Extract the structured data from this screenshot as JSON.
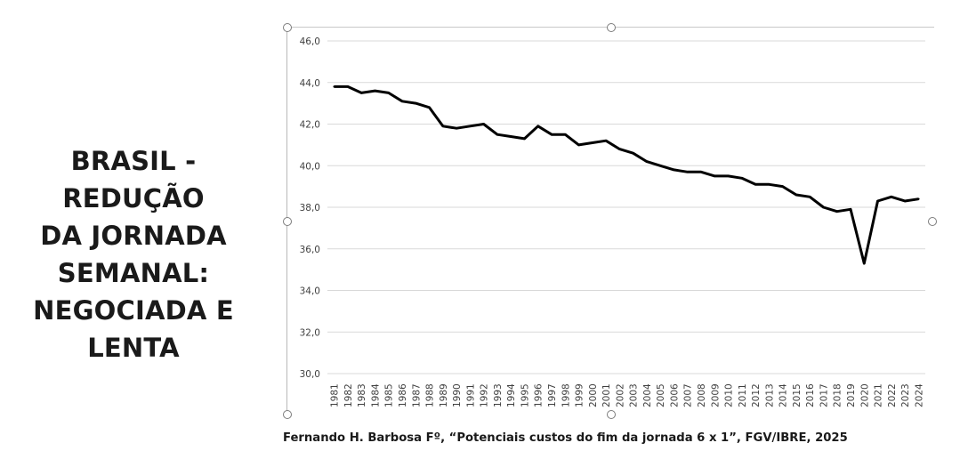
{
  "title_lines": [
    "BRASIL - REDUÇÃO",
    "DA JORNADA",
    "SEMANAL:",
    "NEGOCIADA E",
    "LENTA"
  ],
  "caption": "Fernando H. Barbosa Fº, “Potenciais custos do fim da jornada 6 x 1”, FGV/IBRE, 2025",
  "chart_data": {
    "type": "line",
    "title": "",
    "xlabel": "",
    "ylabel": "",
    "ylim": [
      30,
      46
    ],
    "yticks": [
      "30,0",
      "32,0",
      "34,0",
      "36,0",
      "38,0",
      "40,0",
      "42,0",
      "44,0",
      "46,0"
    ],
    "grid": true,
    "legend": "none",
    "line_color": "#000000",
    "x": [
      "1981",
      "1982",
      "1983",
      "1984",
      "1985",
      "1986",
      "1987",
      "1988",
      "1989",
      "1990",
      "1991",
      "1992",
      "1993",
      "1994",
      "1995",
      "1996",
      "1997",
      "1998",
      "1999",
      "2000",
      "2001",
      "2002",
      "2003",
      "2004",
      "2005",
      "2006",
      "2007",
      "2008",
      "2009",
      "2010",
      "2011",
      "2012",
      "2013",
      "2014",
      "2015",
      "2016",
      "2017",
      "2018",
      "2019",
      "2020",
      "2021",
      "2022",
      "2023",
      "2024"
    ],
    "series": [
      {
        "values": [
          43.8,
          43.8,
          43.5,
          43.6,
          43.5,
          43.1,
          43.0,
          42.8,
          41.9,
          41.8,
          41.9,
          42.0,
          41.5,
          41.4,
          41.3,
          41.9,
          41.5,
          41.5,
          41.0,
          41.1,
          41.2,
          40.8,
          40.6,
          40.2,
          40.0,
          39.8,
          39.7,
          39.7,
          39.5,
          39.5,
          39.4,
          39.1,
          39.1,
          39.0,
          38.6,
          38.5,
          38.0,
          37.8,
          37.9,
          35.3,
          38.3,
          38.5,
          38.3,
          38.4
        ]
      }
    ]
  }
}
